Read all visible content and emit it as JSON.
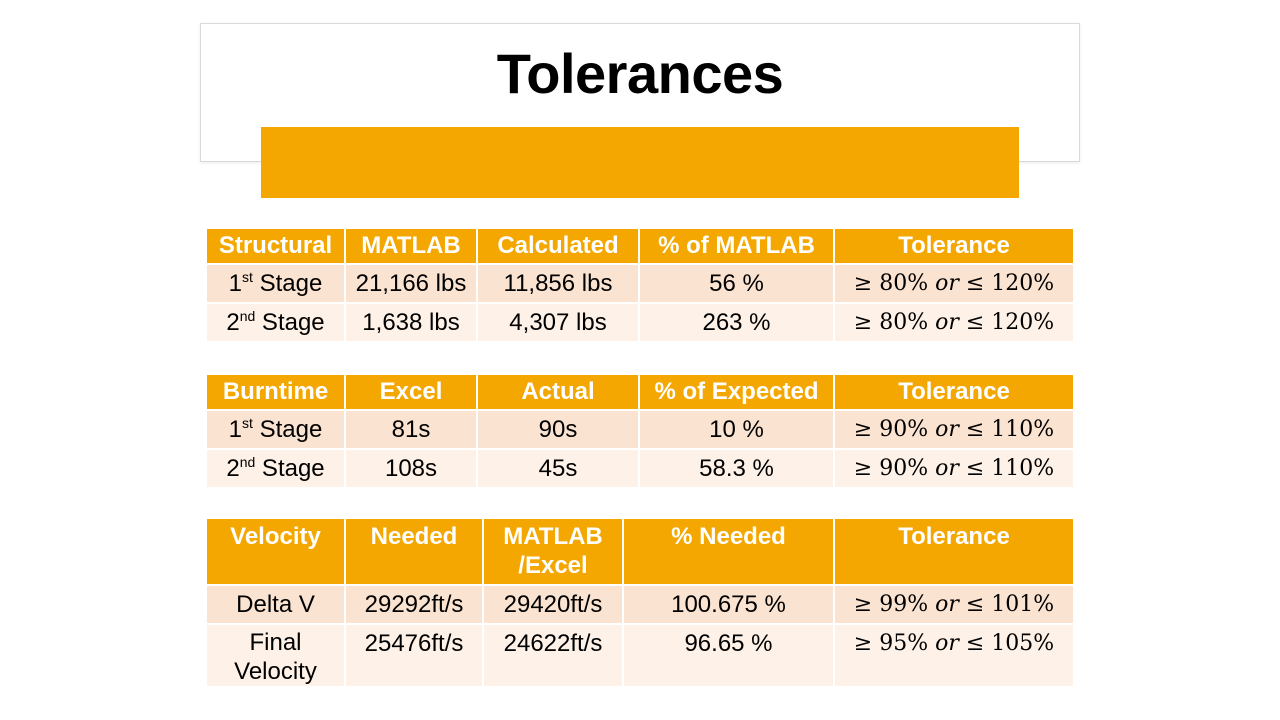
{
  "title": "Tolerances",
  "colors": {
    "accent": "#f4a700",
    "row_dark": "#fbe3d1",
    "row_light": "#fdf1e8"
  },
  "structural": {
    "headers": [
      "Structural",
      "MATLAB",
      "Calculated",
      "% of MATLAB",
      "Tolerance"
    ],
    "rows": [
      {
        "stage_num": "1",
        "stage_sup": "st",
        "stage_word": " Stage",
        "a": "21,166 lbs",
        "b": "11,856 lbs",
        "pct": "56 %",
        "tol_low": "≥ 80% ",
        "tol_or": "or",
        "tol_high": " ≤ 120%"
      },
      {
        "stage_num": "2",
        "stage_sup": "nd",
        "stage_word": " Stage",
        "a": "1,638 lbs",
        "b": "4,307 lbs",
        "pct": "263 %",
        "tol_low": "≥ 80% ",
        "tol_or": "or",
        "tol_high": " ≤ 120%"
      }
    ]
  },
  "burntime": {
    "headers": [
      "Burntime",
      "Excel",
      "Actual",
      "% of Expected",
      "Tolerance"
    ],
    "rows": [
      {
        "stage_num": "1",
        "stage_sup": "st",
        "stage_word": " Stage",
        "a": "81s",
        "b": "90s",
        "pct": "10 %",
        "tol_low": "≥ 90% ",
        "tol_or": "or",
        "tol_high": " ≤ 110%"
      },
      {
        "stage_num": "2",
        "stage_sup": "nd",
        "stage_word": " Stage",
        "a": "108s",
        "b": "45s",
        "pct": "58.3 %",
        "tol_low": "≥ 90% ",
        "tol_or": "or",
        "tol_high": " ≤ 110%"
      }
    ]
  },
  "velocity": {
    "headers": [
      "Velocity",
      "Needed",
      "MATLAB",
      "/Excel",
      "% Needed",
      "Tolerance"
    ],
    "rows": [
      {
        "label_1": "Delta V",
        "label_2": "",
        "a": "29292ft/s",
        "b": "29420ft/s",
        "pct": "100.675 %",
        "tol_low": "≥ 99% ",
        "tol_or": "or",
        "tol_high": " ≤ 101%"
      },
      {
        "label_1": "Final",
        "label_2": "Velocity",
        "a": "25476ft/s",
        "b": "24622ft/s",
        "pct": "96.65 %",
        "tol_low": "≥ 95% ",
        "tol_or": "or",
        "tol_high": " ≤ 105%"
      }
    ]
  }
}
